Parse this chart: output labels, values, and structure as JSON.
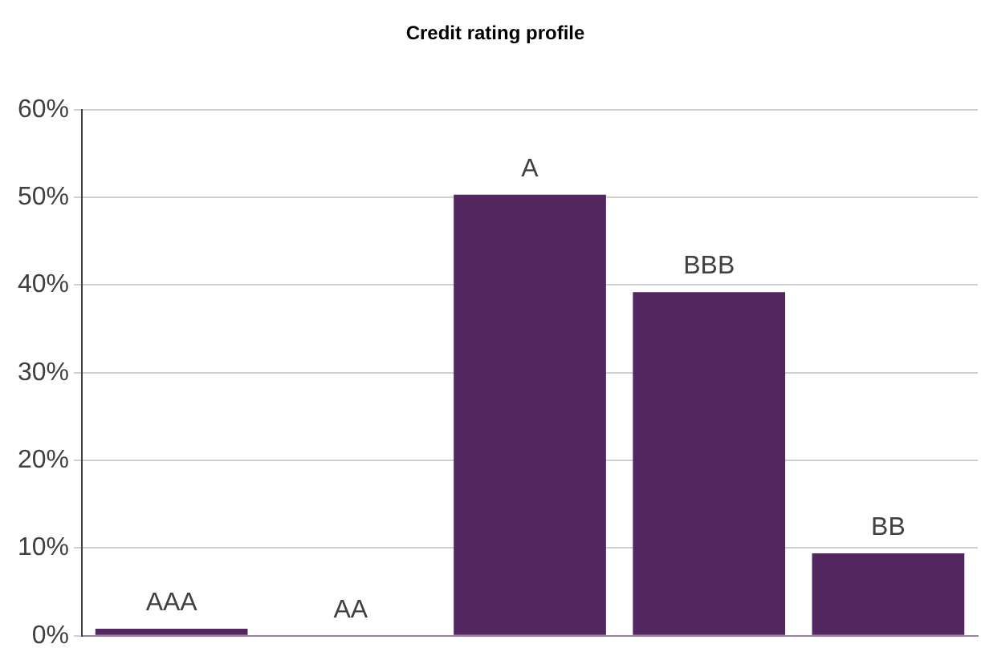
{
  "chart_data": {
    "type": "bar",
    "title": "Credit rating profile",
    "categories": [
      "AAA",
      "AA",
      "A",
      "BBB",
      "BB"
    ],
    "values": [
      0.8,
      0,
      50.3,
      39.2,
      9.4
    ],
    "color": "#52265f",
    "ylim": [
      0,
      60
    ],
    "yticks": [
      {
        "value": 0,
        "label": "0%"
      },
      {
        "value": 10,
        "label": "10%"
      },
      {
        "value": 20,
        "label": "20%"
      },
      {
        "value": 30,
        "label": "30%"
      },
      {
        "value": 40,
        "label": "40%"
      },
      {
        "value": 50,
        "label": "50%"
      },
      {
        "value": 60,
        "label": "60%"
      }
    ],
    "grid": "y",
    "legend": false,
    "tick_labels": "y"
  }
}
